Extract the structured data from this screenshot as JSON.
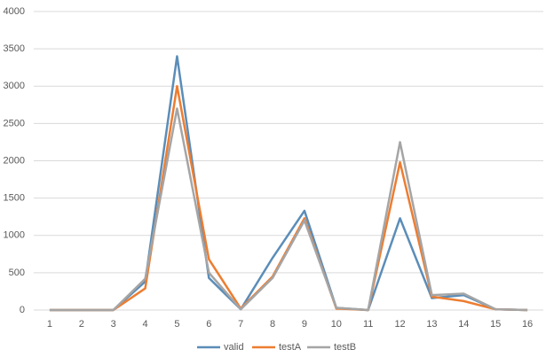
{
  "chart_data": {
    "type": "line",
    "categories": [
      "1",
      "2",
      "3",
      "4",
      "5",
      "6",
      "7",
      "8",
      "9",
      "10",
      "11",
      "12",
      "13",
      "14",
      "15",
      "16"
    ],
    "series": [
      {
        "name": "valid",
        "color": "#5b8db8",
        "values": [
          0,
          0,
          0,
          380,
          3400,
          430,
          10,
          700,
          1330,
          30,
          0,
          1230,
          160,
          200,
          10,
          0
        ]
      },
      {
        "name": "testA",
        "color": "#ed7d31",
        "values": [
          0,
          0,
          0,
          290,
          3000,
          680,
          20,
          450,
          1230,
          20,
          0,
          1980,
          180,
          120,
          10,
          0
        ]
      },
      {
        "name": "testB",
        "color": "#a5a5a5",
        "values": [
          0,
          0,
          0,
          420,
          2700,
          500,
          10,
          430,
          1200,
          30,
          0,
          2250,
          200,
          220,
          10,
          0
        ]
      }
    ],
    "ylim": [
      0,
      4000
    ],
    "yticks": [
      0,
      500,
      1000,
      1500,
      2000,
      2500,
      3000,
      3500,
      4000
    ],
    "grid": true,
    "legend": "bottom"
  }
}
